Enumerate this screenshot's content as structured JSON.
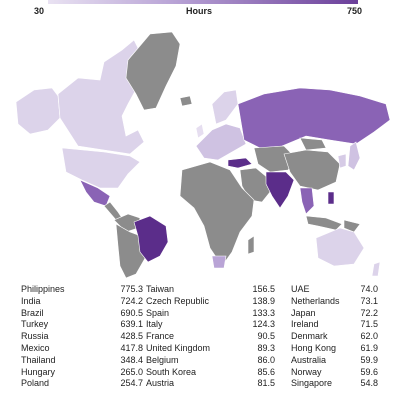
{
  "legend": {
    "title": "Hours",
    "min_label": "30",
    "max_label": "750",
    "color_low": "#e9e2f2",
    "color_high": "#6b3f9a",
    "no_data_color": "#8c8c8c"
  },
  "map": {
    "regions": [
      {
        "id": "alaska",
        "color": "#dcd3ea"
      },
      {
        "id": "canada",
        "color": "#dcd3ea"
      },
      {
        "id": "greenland",
        "color": "#8c8c8c"
      },
      {
        "id": "usa",
        "color": "#dcd3ea"
      },
      {
        "id": "mexico",
        "color": "#8a63b5"
      },
      {
        "id": "central-america",
        "color": "#8c8c8c"
      },
      {
        "id": "colombia",
        "color": "#8c8c8c"
      },
      {
        "id": "south-america",
        "color": "#8c8c8c"
      },
      {
        "id": "brazil",
        "color": "#5b2d8a"
      },
      {
        "id": "iceland",
        "color": "#8c8c8c"
      },
      {
        "id": "uk",
        "color": "#e6def0"
      },
      {
        "id": "europe",
        "color": "#cfc2e2"
      },
      {
        "id": "scandinavia",
        "color": "#dcd3ea"
      },
      {
        "id": "russia",
        "color": "#8a63b5"
      },
      {
        "id": "turkey",
        "color": "#5b2d8a"
      },
      {
        "id": "middle-east",
        "color": "#8c8c8c"
      },
      {
        "id": "africa",
        "color": "#8c8c8c"
      },
      {
        "id": "south-africa",
        "color": "#b9a4d6"
      },
      {
        "id": "madagascar",
        "color": "#8c8c8c"
      },
      {
        "id": "central-asia",
        "color": "#8c8c8c"
      },
      {
        "id": "china",
        "color": "#8c8c8c"
      },
      {
        "id": "mongolia",
        "color": "#8c8c8c"
      },
      {
        "id": "india",
        "color": "#5b2d8a"
      },
      {
        "id": "southeast-asia",
        "color": "#8a63b5"
      },
      {
        "id": "korea",
        "color": "#d6cbe6"
      },
      {
        "id": "japan",
        "color": "#cfc2e2"
      },
      {
        "id": "indonesia",
        "color": "#8c8c8c"
      },
      {
        "id": "philippines",
        "color": "#5b2d8a"
      },
      {
        "id": "png",
        "color": "#8c8c8c"
      },
      {
        "id": "australia",
        "color": "#dcd3ea"
      },
      {
        "id": "new-zealand",
        "color": "#dcd3ea"
      }
    ]
  },
  "table": {
    "columns": [
      [
        {
          "country": "Philippines",
          "value": "775.3"
        },
        {
          "country": "India",
          "value": "724.2"
        },
        {
          "country": "Brazil",
          "value": "690.5"
        },
        {
          "country": "Turkey",
          "value": "639.1"
        },
        {
          "country": "Russia",
          "value": "428.5"
        },
        {
          "country": "Mexico",
          "value": "417.8"
        },
        {
          "country": "Thailand",
          "value": "348.4"
        },
        {
          "country": "Hungary",
          "value": "265.0"
        },
        {
          "country": "Poland",
          "value": "254.7"
        }
      ],
      [
        {
          "country": "Taiwan",
          "value": "156.5"
        },
        {
          "country": "Czech Republic",
          "value": "138.9"
        },
        {
          "country": "Spain",
          "value": "133.3"
        },
        {
          "country": "Italy",
          "value": "124.3"
        },
        {
          "country": "France",
          "value": "90.5"
        },
        {
          "country": "United Kingdom",
          "value": "89.3"
        },
        {
          "country": "Belgium",
          "value": "86.0"
        },
        {
          "country": "South Korea",
          "value": "85.6"
        },
        {
          "country": "Austria",
          "value": "81.5"
        }
      ],
      [
        {
          "country": "UAE",
          "value": "74.0"
        },
        {
          "country": "Netherlands",
          "value": "73.1"
        },
        {
          "country": "Japan",
          "value": "72.2"
        },
        {
          "country": "Ireland",
          "value": "71.5"
        },
        {
          "country": "Denmark",
          "value": "62.0"
        },
        {
          "country": "Hong Kong",
          "value": "61.9"
        },
        {
          "country": "Australia",
          "value": "59.9"
        },
        {
          "country": "Norway",
          "value": "59.6"
        },
        {
          "country": "Singapore",
          "value": "54.8"
        }
      ]
    ]
  }
}
